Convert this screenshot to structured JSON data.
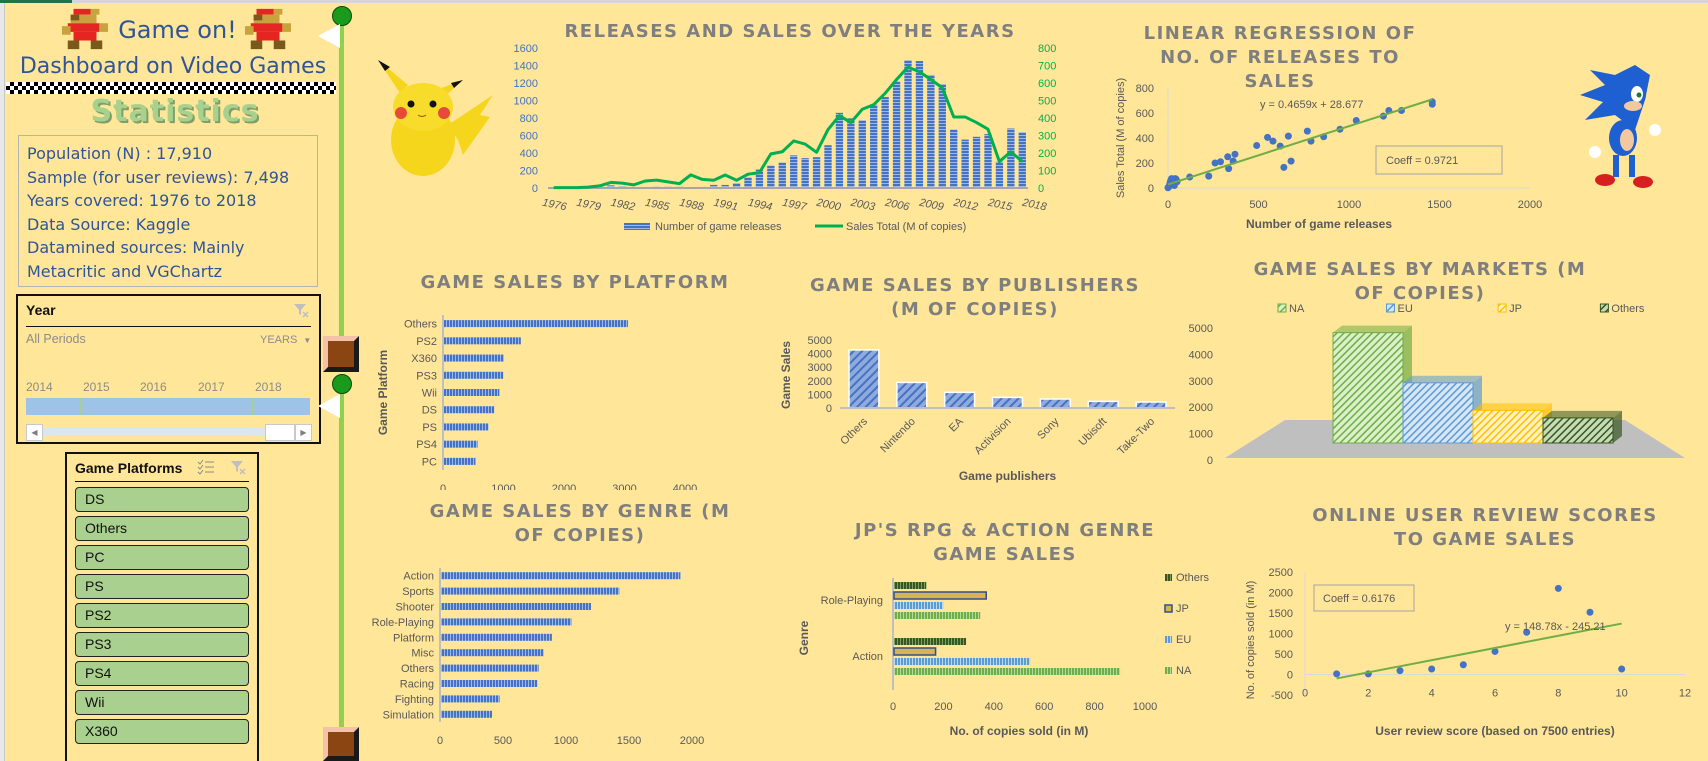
{
  "header": {
    "title_line1": "Game on!",
    "title_line2": "Dashboard on Video Games",
    "stats_heading": "Statistics"
  },
  "stats": [
    "Population (N) : 17,910",
    "Sample (for user reviews): 7,498",
    "Years covered: 1976 to 2018",
    "Data Source: Kaggle",
    "Datamined sources: Mainly",
    "Metacritic and VGChartz"
  ],
  "timeline": {
    "title": "Year",
    "selection": "All Periods",
    "level": "YEARS",
    "years": [
      "2014",
      "2015",
      "2016",
      "2017",
      "2018"
    ]
  },
  "platform_slicer": {
    "title": "Game Platforms",
    "items": [
      "DS",
      "Others",
      "PC",
      "PS",
      "PS2",
      "PS3",
      "PS4",
      "Wii",
      "X360"
    ]
  },
  "colors": {
    "background": "#ffe699",
    "bar_blue": "#4472c4",
    "line_green": "#00b050",
    "trend_green": "#70ad47",
    "slicer_green": "#a9d08e",
    "title_gray": "#7f7f7f"
  },
  "chart_data": [
    {
      "id": "releases",
      "type": "bar+line",
      "title": "RELEASES AND SALES OVER THE YEARS",
      "x_tick_labels": [
        "1976",
        "1979",
        "1982",
        "1985",
        "1988",
        "1991",
        "1994",
        "1997",
        "2000",
        "2003",
        "2006",
        "2009",
        "2012",
        "2015",
        "2018"
      ],
      "x": [
        1976,
        1977,
        1978,
        1979,
        1980,
        1981,
        1982,
        1983,
        1984,
        1985,
        1986,
        1987,
        1988,
        1989,
        1990,
        1991,
        1992,
        1993,
        1994,
        1995,
        1996,
        1997,
        1998,
        1999,
        2000,
        2001,
        2002,
        2003,
        2004,
        2005,
        2006,
        2007,
        2008,
        2009,
        2010,
        2011,
        2012,
        2013,
        2014,
        2015,
        2016,
        2017
      ],
      "series": [
        {
          "name": "Number of game releases",
          "axis": "left",
          "type": "bar",
          "values": [
            0,
            0,
            0,
            0,
            25,
            30,
            20,
            10,
            5,
            15,
            15,
            15,
            12,
            12,
            35,
            35,
            56,
            120,
            211,
            257,
            292,
            373,
            341,
            352,
            489,
            859,
            796,
            775,
            951,
            1039,
            1218,
            1461,
            1451,
            1292,
            1187,
            669,
            553,
            585,
            616,
            299,
            680,
            637
          ]
        },
        {
          "name": "Sales Total (M of copies)",
          "axis": "right",
          "type": "line",
          "values": [
            2,
            2,
            2,
            5,
            12,
            32,
            28,
            18,
            40,
            45,
            35,
            25,
            75,
            49,
            44,
            74,
            44,
            79,
            88,
            195,
            207,
            269,
            251,
            204,
            334,
            413,
            374,
            450,
            476,
            541,
            620,
            691,
            664,
            620,
            573,
            406,
            406,
            374,
            336,
            151,
            207,
            151
          ]
        }
      ],
      "y_left": {
        "ticks": [
          "0",
          "200",
          "400",
          "600",
          "800",
          "1000",
          "1200",
          "1400",
          "1600"
        ],
        "range": [
          0,
          1600
        ]
      },
      "y_right": {
        "ticks": [
          "0",
          "100",
          "200",
          "300",
          "400",
          "500",
          "600",
          "700",
          "800"
        ],
        "range": [
          0,
          800
        ]
      },
      "legend": [
        "Number of game releases",
        "Sales Total (M of copies)"
      ],
      "legend_position": "bottom"
    },
    {
      "id": "regression",
      "type": "scatter",
      "title": "LINEAR REGRESSION OF NO. OF RELEASES TO SALES",
      "xlabel": "Number of game releases",
      "ylabel": "Sales Total (M of copies)",
      "xlim": [
        0,
        2000
      ],
      "ylim": [
        0,
        800
      ],
      "x_ticks": [
        "0",
        "500",
        "1000",
        "1500",
        "2000"
      ],
      "y_ticks": [
        "0",
        "200",
        "400",
        "600",
        "800"
      ],
      "points": [
        [
          0,
          2
        ],
        [
          5,
          10
        ],
        [
          10,
          30
        ],
        [
          15,
          60
        ],
        [
          20,
          75
        ],
        [
          25,
          70
        ],
        [
          30,
          40
        ],
        [
          35,
          20
        ],
        [
          40,
          75
        ],
        [
          45,
          70
        ],
        [
          50,
          50
        ],
        [
          12,
          45
        ],
        [
          120,
          88
        ],
        [
          225,
          95
        ],
        [
          260,
          200
        ],
        [
          290,
          210
        ],
        [
          330,
          250
        ],
        [
          335,
          155
        ],
        [
          360,
          215
        ],
        [
          370,
          270
        ],
        [
          490,
          340
        ],
        [
          550,
          405
        ],
        [
          580,
          375
        ],
        [
          620,
          335
        ],
        [
          640,
          165
        ],
        [
          665,
          415
        ],
        [
          680,
          215
        ],
        [
          770,
          455
        ],
        [
          790,
          375
        ],
        [
          860,
          410
        ],
        [
          950,
          470
        ],
        [
          1040,
          540
        ],
        [
          1190,
          575
        ],
        [
          1220,
          620
        ],
        [
          1290,
          620
        ],
        [
          1460,
          690
        ],
        [
          1460,
          670
        ]
      ],
      "trendline": {
        "slope": 0.4659,
        "intercept": 28.677,
        "label": "y = 0.4659x + 28.677"
      },
      "annotation": "Coeff = 0.9721"
    },
    {
      "id": "platform",
      "type": "bar",
      "orientation": "horizontal",
      "title": "GAME SALES BY PLATFORM",
      "ylabel": "Game Platform",
      "categories": [
        "Others",
        "PS2",
        "X360",
        "PS3",
        "Wii",
        "DS",
        "PS",
        "PS4",
        "PC"
      ],
      "values": [
        3040,
        1270,
        990,
        980,
        915,
        830,
        735,
        555,
        520
      ],
      "xlim": [
        0,
        4000
      ],
      "x_ticks": [
        "0",
        "1000",
        "2000",
        "3000",
        "4000"
      ]
    },
    {
      "id": "publishers",
      "type": "bar",
      "title": "GAME SALES BY PUBLISHERS (M OF COPIES)",
      "xlabel": "Game publishers",
      "ylabel": "Game Sales",
      "categories": [
        "Others",
        "Nintendo",
        "EA",
        "Activision",
        "Sony",
        "Ubisoft",
        "Take-Two"
      ],
      "values": [
        4270,
        1880,
        1150,
        780,
        660,
        490,
        440
      ],
      "ylim": [
        0,
        5000
      ],
      "y_ticks": [
        "0",
        "1000",
        "2000",
        "3000",
        "4000",
        "5000"
      ]
    },
    {
      "id": "markets",
      "type": "bar",
      "style": "3d",
      "title": "GAME SALES BY MARKETS (M OF COPIES)",
      "categories": [
        "NA",
        "EU",
        "JP",
        "Others"
      ],
      "values": [
        4400,
        2400,
        1300,
        1000
      ],
      "ylim": [
        0,
        5000
      ],
      "y_ticks": [
        "0",
        "1000",
        "2000",
        "3000",
        "4000",
        "5000"
      ],
      "legend": [
        "NA",
        "EU",
        "JP",
        "Others"
      ],
      "legend_position": "top"
    },
    {
      "id": "genre",
      "type": "bar",
      "orientation": "horizontal",
      "title": "GAME SALES BY GENRE (M OF COPIES)",
      "categories": [
        "Action",
        "Sports",
        "Shooter",
        "Role-Playing",
        "Platform",
        "Misc",
        "Others",
        "Racing",
        "Fighting",
        "Simulation"
      ],
      "values": [
        1900,
        1415,
        1190,
        1035,
        880,
        815,
        775,
        765,
        465,
        405
      ],
      "xlim": [
        0,
        2000
      ],
      "x_ticks": [
        "0",
        "500",
        "1000",
        "1500",
        "2000"
      ]
    },
    {
      "id": "jp_genre",
      "type": "bar",
      "orientation": "horizontal",
      "title": "JP'S RPG & ACTION GENRE GAME SALES",
      "xlabel": "No. of copies sold (in M)",
      "ylabel": "Genre",
      "categories": [
        "Role-Playing",
        "Action"
      ],
      "series": [
        {
          "name": "Others",
          "values": [
            128,
            286
          ]
        },
        {
          "name": "JP",
          "values": [
            366,
            165
          ]
        },
        {
          "name": "EU",
          "values": [
            195,
            540
          ]
        },
        {
          "name": "NA",
          "values": [
            342,
            897
          ]
        }
      ],
      "xlim": [
        0,
        1000
      ],
      "x_ticks": [
        "0",
        "200",
        "400",
        "600",
        "800",
        "1000"
      ],
      "legend": [
        "Others",
        "JP",
        "EU",
        "NA"
      ],
      "legend_position": "right"
    },
    {
      "id": "reviews",
      "type": "scatter",
      "title": "ONLINE USER REVIEW SCORES TO GAME SALES",
      "xlabel": "User review score (based on 7500 entries)",
      "ylabel": "No. of copies sold (in M)",
      "xlim": [
        0,
        12
      ],
      "ylim": [
        -500,
        2500
      ],
      "x_ticks": [
        "0",
        "2",
        "4",
        "6",
        "8",
        "10",
        "12"
      ],
      "y_ticks": [
        "-500",
        "0",
        "500",
        "1000",
        "1500",
        "2000",
        "2500"
      ],
      "points": [
        [
          1,
          15
        ],
        [
          2,
          15
        ],
        [
          3,
          95
        ],
        [
          4,
          135
        ],
        [
          5,
          237
        ],
        [
          6,
          562
        ],
        [
          7,
          1030
        ],
        [
          8,
          2100
        ],
        [
          9,
          1518
        ],
        [
          10,
          135
        ]
      ],
      "trendline": {
        "slope": 148.78,
        "intercept": -245.21,
        "label": "y = 148.78x - 245.21"
      },
      "annotation": "Coeff = 0.6176"
    }
  ]
}
